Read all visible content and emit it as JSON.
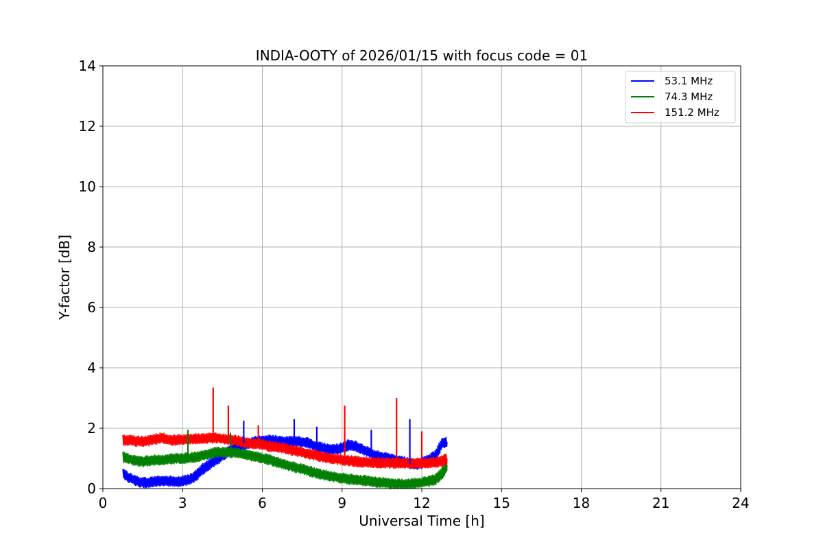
{
  "chart_data": {
    "type": "line",
    "title": "INDIA-OOTY of 2026/01/15 with focus code = 01",
    "xlabel": "Universal Time [h]",
    "ylabel": "Y-factor [dB]",
    "xlim": [
      0,
      24
    ],
    "ylim": [
      0,
      14
    ],
    "xticks": [
      0,
      3,
      6,
      9,
      12,
      15,
      18,
      21,
      24
    ],
    "yticks": [
      0,
      2,
      4,
      6,
      8,
      10,
      12,
      14
    ],
    "grid": true,
    "legend_position": "top-right",
    "x": [
      0.75,
      1.0,
      1.25,
      1.5,
      1.75,
      2.0,
      2.25,
      2.5,
      2.75,
      3.0,
      3.25,
      3.5,
      3.75,
      4.0,
      4.25,
      4.5,
      4.75,
      5.0,
      5.25,
      5.5,
      5.75,
      6.0,
      6.25,
      6.5,
      6.75,
      7.0,
      7.25,
      7.5,
      7.75,
      8.0,
      8.25,
      8.5,
      8.75,
      9.0,
      9.25,
      9.5,
      9.75,
      10.0,
      10.25,
      10.5,
      10.75,
      11.0,
      11.25,
      11.5,
      11.75,
      12.0,
      12.25,
      12.5,
      12.75,
      12.95
    ],
    "series": [
      {
        "name": "  53.1 MHz",
        "color": "#0000ff",
        "values": [
          0.5,
          0.35,
          0.25,
          0.2,
          0.2,
          0.25,
          0.25,
          0.25,
          0.22,
          0.25,
          0.3,
          0.45,
          0.65,
          0.8,
          0.95,
          1.1,
          1.25,
          1.35,
          1.45,
          1.5,
          1.55,
          1.6,
          1.6,
          1.6,
          1.55,
          1.55,
          1.55,
          1.55,
          1.5,
          1.4,
          1.35,
          1.3,
          1.3,
          1.35,
          1.45,
          1.4,
          1.3,
          1.2,
          1.1,
          1.05,
          1.0,
          0.95,
          0.9,
          0.85,
          0.8,
          0.85,
          0.95,
          1.1,
          1.5,
          1.55
        ]
      },
      {
        "name": "  74.3 MHz",
        "color": "#008000",
        "values": [
          1.05,
          0.98,
          0.92,
          0.9,
          0.92,
          0.95,
          0.95,
          0.98,
          1.0,
          1.0,
          1.02,
          1.05,
          1.1,
          1.15,
          1.2,
          1.2,
          1.2,
          1.18,
          1.15,
          1.1,
          1.05,
          1.0,
          0.95,
          0.88,
          0.82,
          0.76,
          0.7,
          0.65,
          0.58,
          0.52,
          0.46,
          0.42,
          0.38,
          0.35,
          0.32,
          0.3,
          0.27,
          0.25,
          0.22,
          0.2,
          0.18,
          0.16,
          0.15,
          0.15,
          0.18,
          0.2,
          0.25,
          0.3,
          0.5,
          0.8
        ]
      },
      {
        "name": "151.2 MHz",
        "color": "#ff0000",
        "values": [
          1.6,
          1.6,
          1.58,
          1.55,
          1.6,
          1.65,
          1.68,
          1.6,
          1.6,
          1.62,
          1.65,
          1.65,
          1.65,
          1.68,
          1.68,
          1.65,
          1.62,
          1.6,
          1.55,
          1.5,
          1.48,
          1.45,
          1.4,
          1.38,
          1.35,
          1.3,
          1.25,
          1.2,
          1.15,
          1.1,
          1.05,
          1.0,
          0.98,
          0.95,
          0.92,
          0.9,
          0.88,
          0.87,
          0.86,
          0.85,
          0.85,
          0.85,
          0.85,
          0.84,
          0.83,
          0.84,
          0.85,
          0.88,
          0.92,
          1.0
        ]
      }
    ],
    "spikes": [
      {
        "series": 2,
        "x": 4.15,
        "y": 3.35
      },
      {
        "series": 2,
        "x": 4.72,
        "y": 2.75
      },
      {
        "series": 2,
        "x": 5.85,
        "y": 2.1
      },
      {
        "series": 2,
        "x": 9.1,
        "y": 2.75
      },
      {
        "series": 2,
        "x": 11.05,
        "y": 3.0
      },
      {
        "series": 2,
        "x": 12.0,
        "y": 1.9
      },
      {
        "series": 0,
        "x": 5.3,
        "y": 2.25
      },
      {
        "series": 0,
        "x": 7.2,
        "y": 2.3
      },
      {
        "series": 0,
        "x": 8.05,
        "y": 2.05
      },
      {
        "series": 0,
        "x": 10.1,
        "y": 1.95
      },
      {
        "series": 0,
        "x": 11.55,
        "y": 2.3
      },
      {
        "series": 1,
        "x": 3.2,
        "y": 1.95
      },
      {
        "series": 1,
        "x": 4.8,
        "y": 1.85
      }
    ]
  }
}
